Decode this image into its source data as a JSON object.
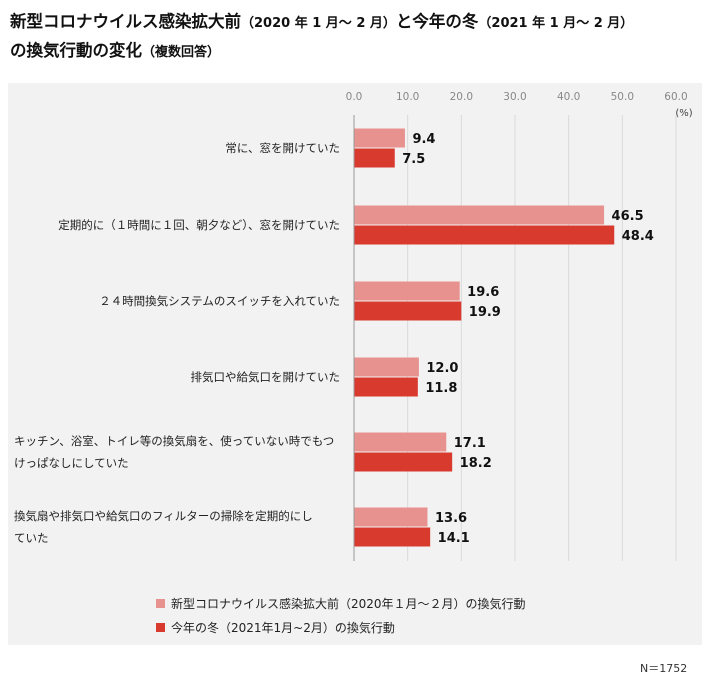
{
  "title": {
    "line1_main": "新型コロナウイルス感染拡大前",
    "line1_paren1": "（2020 年 1 月～ 2 月）",
    "line1_mid": "と今年の冬",
    "line1_paren2": "（2021 年 1 月～ 2 月）",
    "line2_main": "の換気行動の変化",
    "line2_paren": "（複数回答）"
  },
  "colors": {
    "before": "#e8928f",
    "now": "#d93a2e",
    "grid": "#d9d9d9",
    "axis": "#999999"
  },
  "chart_data": {
    "type": "bar",
    "orientation": "horizontal",
    "categories": [
      "常に、窓を開けていた",
      "定期的に（１時間に１回、朝夕など）、窓を開けていた",
      "２４時間換気システムのスイッチを入れていた",
      "排気口や給気口を開けていた",
      "キッチン、浴室、トイレ等の換気扇を、使っていない時でもつけっぱなしにしていた",
      "換気扇や排気口や給気口のフィルターの掃除を定期的にしていた"
    ],
    "category_lines": [
      [
        "常に、窓を開けていた"
      ],
      [
        "定期的に（１時間に１回、朝夕など）、窓を開けていた"
      ],
      [
        "２４時間換気システムのスイッチを入れていた"
      ],
      [
        "排気口や給気口を開けていた"
      ],
      [
        "キッチン、浴室、トイレ等の換気扇を、使っていない時でもつ",
        "けっぱなしにしていた"
      ],
      [
        "換気扇や排気口や給気口のフィルターの掃除を定期的にし",
        "ていた"
      ]
    ],
    "series": [
      {
        "name": "新型コロナウイルス感染拡大前（2020年１月～２月）の換気行動",
        "values": [
          9.4,
          46.5,
          19.6,
          12.0,
          17.1,
          13.6
        ]
      },
      {
        "name": "今年の冬（2021年1月~2月）の換気行動",
        "values": [
          7.5,
          48.4,
          19.9,
          11.8,
          18.2,
          14.1
        ]
      }
    ],
    "xlim": [
      0,
      60
    ],
    "ticks": [
      "0.0",
      "10.0",
      "20.0",
      "30.0",
      "40.0",
      "50.0",
      "60.0"
    ],
    "unit": "(%)",
    "grid": true,
    "legend_position": "bottom"
  },
  "note": "N＝1752"
}
